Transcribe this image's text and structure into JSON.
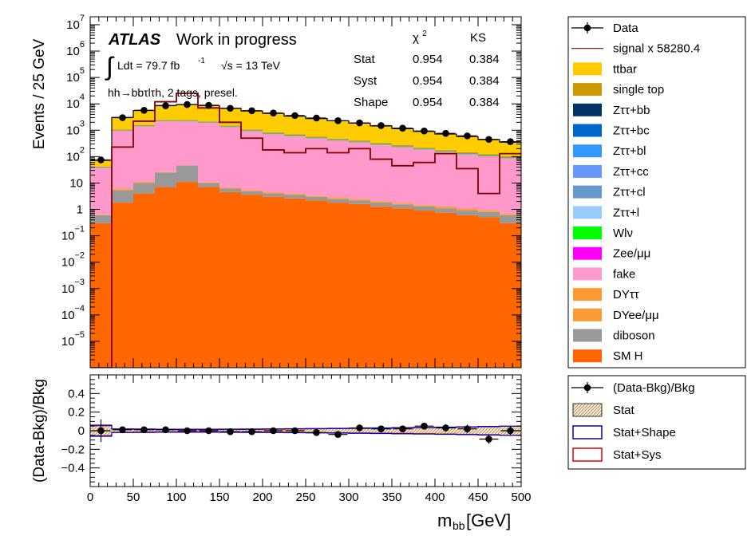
{
  "chart_data": [
    {
      "type": "bar",
      "stacked": true,
      "log_y": true,
      "bin_edges": [
        0,
        25,
        50,
        75,
        100,
        125,
        150,
        175,
        200,
        225,
        250,
        275,
        300,
        325,
        350,
        375,
        400,
        425,
        450,
        475,
        500
      ],
      "ylabel": "Events / 25 GeV",
      "ylim": [
        1e-06,
        20000000.0
      ],
      "xlim": [
        0,
        500
      ],
      "ytick_labels": [
        "10^7",
        "10^6",
        "10^5",
        "10^4",
        "10^3",
        "10^2",
        "10",
        "1",
        "10^-1",
        "10^-2",
        "10^-3",
        "10^-4",
        "10^-5"
      ],
      "series": [
        {
          "name": "SM H",
          "color": "#ff6600",
          "values": [
            0.3,
            1.8,
            4,
            7,
            11,
            7,
            4.5,
            3.6,
            3,
            2.6,
            2.2,
            1.8,
            1.6,
            1.3,
            1.1,
            0.9,
            0.75,
            0.6,
            0.5,
            0.3
          ]
        },
        {
          "name": "diboson",
          "color": "#999999",
          "values": [
            0.3,
            3.5,
            6,
            18,
            35,
            3,
            1.6,
            1.2,
            1,
            0.9,
            0.8,
            0.7,
            0.6,
            0.5,
            0.45,
            0.4,
            0.35,
            0.3,
            0.3,
            0.3
          ]
        },
        {
          "name": "DYee/μμ",
          "color": "#ff9933",
          "values": [
            0.02,
            0.5,
            0.6,
            0.6,
            0.6,
            0.5,
            0.4,
            0.3,
            0.3,
            0.25,
            0.2,
            0.2,
            0.2,
            0.15,
            0.12,
            0.1,
            0.1,
            0.1,
            0.08,
            0.05
          ]
        },
        {
          "name": "DYττ",
          "color": "#ff9933",
          "values": [
            0.02,
            0.4,
            0.5,
            0.5,
            0.5,
            0.4,
            0.3,
            0.25,
            0.2,
            0.2,
            0.15,
            0.15,
            0.12,
            0.1,
            0.1,
            0.08,
            0.08,
            0.07,
            0.06,
            0.05
          ]
        },
        {
          "name": "fake",
          "color": "#ff99cc",
          "values": [
            36,
            930,
            1380,
            2160,
            2100,
            1900,
            1300,
            900,
            700,
            580,
            480,
            400,
            340,
            270,
            225,
            180,
            145,
            120,
            100,
            85
          ]
        },
        {
          "name": "Zee/μμ",
          "color": "#ff00ff",
          "values": [
            0.5,
            10,
            14,
            20,
            20,
            17,
            13,
            10,
            8,
            7,
            6,
            5,
            4,
            3.5,
            3,
            2.5,
            2,
            1.8,
            1.5,
            1.2
          ]
        },
        {
          "name": "Wlν",
          "color": "#00ff00",
          "values": [
            1,
            22,
            30,
            50,
            55,
            45,
            35,
            28,
            22,
            18,
            15,
            12,
            10,
            8,
            7,
            6,
            5,
            4,
            3.5,
            3
          ]
        },
        {
          "name": "Zττ+l",
          "color": "#99ccff",
          "values": [
            0.3,
            5,
            8,
            12,
            12,
            10,
            8,
            6,
            5,
            4,
            3.5,
            3,
            2.5,
            2,
            1.8,
            1.5,
            1.2,
            1,
            0.9,
            0.7
          ]
        },
        {
          "name": "Zττ+cl",
          "color": "#6699cc",
          "values": [
            0.3,
            5,
            8,
            12,
            12,
            10,
            8,
            6,
            5,
            4,
            3.5,
            3,
            2.5,
            2,
            1.8,
            1.5,
            1.2,
            1,
            0.9,
            0.7
          ]
        },
        {
          "name": "Zττ+cc",
          "color": "#6699ff",
          "values": [
            0.3,
            4,
            6,
            10,
            10,
            8,
            6,
            5,
            4,
            3.5,
            3,
            2.5,
            2,
            1.8,
            1.5,
            1.2,
            1,
            0.9,
            0.7,
            0.6
          ]
        },
        {
          "name": "Zττ+bl",
          "color": "#3399ff",
          "values": [
            0.3,
            6,
            9,
            14,
            14,
            12,
            9,
            7,
            6,
            5,
            4,
            3.5,
            3,
            2.5,
            2,
            1.8,
            1.5,
            1.2,
            1,
            0.8
          ]
        },
        {
          "name": "Zττ+bc",
          "color": "#0066cc",
          "values": [
            0.3,
            6,
            9,
            14,
            14,
            12,
            9,
            7,
            6,
            5,
            4,
            3.5,
            3,
            2.5,
            2,
            1.8,
            1.5,
            1.2,
            1,
            0.8
          ]
        },
        {
          "name": "Zττ+bb",
          "color": "#003366",
          "values": [
            0.5,
            15,
            25,
            40,
            40,
            35,
            26,
            20,
            16,
            13,
            11,
            9,
            7,
            6,
            5,
            4,
            3.5,
            3,
            2.5,
            2
          ]
        },
        {
          "name": "single top",
          "color": "#cc9900",
          "values": [
            2,
            50,
            80,
            110,
            120,
            110,
            95,
            80,
            65,
            55,
            45,
            38,
            32,
            26,
            21,
            17,
            14,
            11,
            9,
            7
          ]
        },
        {
          "name": "ttbar",
          "color": "#ffcc00",
          "values": [
            30,
            2000,
            4000,
            6200,
            7000,
            6500,
            5300,
            4300,
            3500,
            2700,
            2200,
            1800,
            1450,
            1130,
            880,
            680,
            540,
            430,
            320,
            250
          ]
        }
      ],
      "data": {
        "name": "Data",
        "x": [
          12.5,
          37.5,
          62.5,
          87.5,
          112.5,
          137.5,
          162.5,
          187.5,
          212.5,
          237.5,
          262.5,
          287.5,
          312.5,
          337.5,
          362.5,
          387.5,
          412.5,
          437.5,
          462.5,
          487.5
        ],
        "values": [
          75,
          3000,
          5700,
          8500,
          9400,
          8800,
          6800,
          5500,
          4500,
          3600,
          2900,
          2300,
          1900,
          1500,
          1200,
          940,
          760,
          610,
          450,
          370
        ]
      },
      "signal": {
        "name": "signal x 58280.4",
        "color": "#800000",
        "values": [
          0,
          230,
          2200,
          12000,
          25000,
          7000,
          2000,
          500,
          180,
          140,
          200,
          140,
          200,
          80,
          45,
          60,
          130,
          35,
          4,
          130
        ]
      },
      "annotations": {
        "atlas": "ATLAS",
        "status": "Work in progress",
        "lumi_integral": "∫",
        "lumi_prefix": "Ldt = 79.7 fb",
        "lumi_exp": "-1",
        "energy": "√s = 13 TeV",
        "region": "hh→bbτlτh, 2 tags, presel.",
        "gof_header_chi2": "χ",
        "gof_header_chi2_exp": "2",
        "gof_header_ks": "KS",
        "gof_rows": [
          {
            "label": "Stat",
            "chi2": "0.954",
            "ks": "0.384"
          },
          {
            "label": "Syst",
            "chi2": "0.954",
            "ks": "0.384"
          },
          {
            "label": "Shape",
            "chi2": "0.954",
            "ks": "0.384"
          }
        ]
      }
    },
    {
      "type": "scatter",
      "ylabel": "(Data-Bkg)/Bkg",
      "xlabel_main": "m",
      "xlabel_sub": "bb",
      "xlabel_unit": " [GeV]",
      "xlim": [
        0,
        500
      ],
      "ylim": [
        -0.6,
        0.6
      ],
      "xticks": [
        0,
        50,
        100,
        150,
        200,
        250,
        300,
        350,
        400,
        450,
        500
      ],
      "yticks": [
        0.4,
        0.2,
        0,
        -0.2,
        -0.4
      ],
      "ytick_labels": [
        "0.4",
        "0.2",
        "0",
        "−0.2",
        "−0.4"
      ],
      "ratio": {
        "x": [
          12.5,
          37.5,
          62.5,
          87.5,
          112.5,
          137.5,
          162.5,
          187.5,
          212.5,
          237.5,
          262.5,
          287.5,
          312.5,
          337.5,
          362.5,
          387.5,
          412.5,
          437.5,
          462.5,
          487.5
        ],
        "values": [
          0.0,
          0.01,
          0.01,
          0.01,
          0.0,
          0.0,
          -0.01,
          -0.01,
          0.0,
          0.0,
          -0.02,
          -0.04,
          0.03,
          0.02,
          0.02,
          0.05,
          0.03,
          0.02,
          -0.09,
          0.0
        ],
        "errors": [
          0.12,
          0.02,
          0.015,
          0.012,
          0.011,
          0.011,
          0.013,
          0.014,
          0.016,
          0.018,
          0.02,
          0.022,
          0.025,
          0.028,
          0.032,
          0.035,
          0.04,
          0.045,
          0.05,
          0.055
        ]
      },
      "stat_band_halfwidth": [
        0.05,
        0.015,
        0.012,
        0.01,
        0.01,
        0.01,
        0.011,
        0.012,
        0.014,
        0.016,
        0.018,
        0.02,
        0.022,
        0.024,
        0.027,
        0.03,
        0.033,
        0.036,
        0.04,
        0.045
      ],
      "shape_band_halfwidth": [
        0.06,
        0.02,
        0.018,
        0.016,
        0.016,
        0.016,
        0.017,
        0.018,
        0.02,
        0.022,
        0.024,
        0.026,
        0.028,
        0.03,
        0.033,
        0.036,
        0.039,
        0.042,
        0.046,
        0.05
      ]
    }
  ],
  "legend_main": [
    {
      "label": "Data",
      "kind": "marker"
    },
    {
      "label": "signal x 58280.4",
      "kind": "line",
      "color": "#800000"
    },
    {
      "label": "ttbar",
      "kind": "box",
      "color": "#ffcc00"
    },
    {
      "label": "single top",
      "kind": "box",
      "color": "#cc9900"
    },
    {
      "label": "Zττ+bb",
      "kind": "box",
      "color": "#003366"
    },
    {
      "label": "Zττ+bc",
      "kind": "box",
      "color": "#0066cc"
    },
    {
      "label": "Zττ+bl",
      "kind": "box",
      "color": "#3399ff"
    },
    {
      "label": "Zττ+cc",
      "kind": "box",
      "color": "#6699ff"
    },
    {
      "label": "Zττ+cl",
      "kind": "box",
      "color": "#6699cc"
    },
    {
      "label": "Zττ+l",
      "kind": "box",
      "color": "#99ccff"
    },
    {
      "label": "Wlν",
      "kind": "box",
      "color": "#00ff00"
    },
    {
      "label": "Zee/μμ",
      "kind": "box",
      "color": "#ff00ff"
    },
    {
      "label": "fake",
      "kind": "box",
      "color": "#ff99cc"
    },
    {
      "label": "DYττ",
      "kind": "box",
      "color": "#ff9933"
    },
    {
      "label": "DYee/μμ",
      "kind": "box",
      "color": "#ff9933"
    },
    {
      "label": "diboson",
      "kind": "box",
      "color": "#999999"
    },
    {
      "label": "SM H",
      "kind": "box",
      "color": "#ff6600"
    }
  ],
  "legend_ratio": [
    {
      "label": "(Data-Bkg)/Bkg",
      "kind": "marker"
    },
    {
      "label": "Stat",
      "kind": "hatch",
      "color": "#d8c8a0"
    },
    {
      "label": "Stat+Shape",
      "kind": "outline",
      "color": "#0000cc"
    },
    {
      "label": "Stat+Sys",
      "kind": "outline",
      "color": "#dd0000"
    }
  ]
}
